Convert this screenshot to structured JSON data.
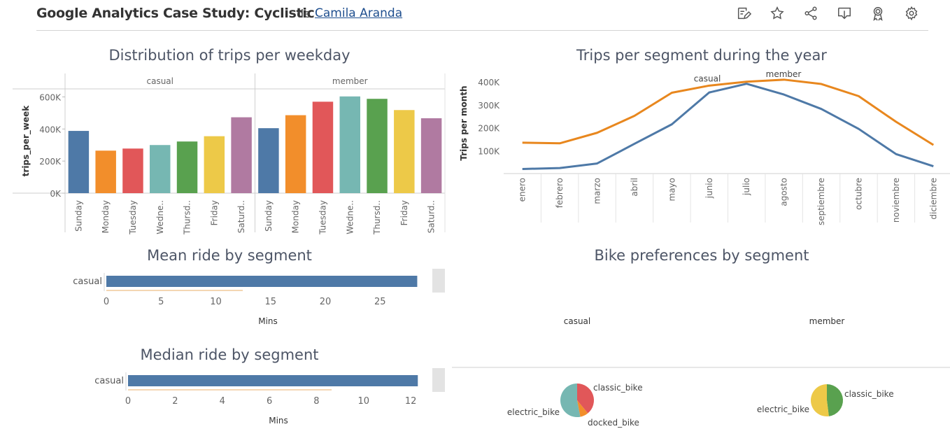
{
  "header": {
    "title": "Google Analytics Case Study: Cyclistic",
    "by": "de",
    "author": "Camila Aranda"
  },
  "toolbar": {
    "icons": [
      "edit-icon",
      "star-icon",
      "share-icon",
      "download-icon",
      "badge-icon",
      "settings-icon"
    ]
  },
  "chart_data": [
    {
      "id": "weekday",
      "type": "bar",
      "title": "Distribution of trips per weekday",
      "ylabel": "trips_per_week",
      "ylim": [
        0,
        650000
      ],
      "yticks": [
        0,
        200000,
        400000,
        600000
      ],
      "ytick_labels": [
        "0K",
        "200K",
        "400K",
        "600K"
      ],
      "categories": [
        "Sunday",
        "Monday",
        "Tuesday",
        "Wedne..",
        "Thursd..",
        "Friday",
        "Saturd.."
      ],
      "colors": [
        "#4e79a7",
        "#f28e2b",
        "#e15759",
        "#76b7b2",
        "#59a14f",
        "#edc948",
        "#b07aa1"
      ],
      "series": [
        {
          "name": "casual",
          "values": [
            388000,
            265000,
            278000,
            300000,
            322000,
            355000,
            473000
          ]
        },
        {
          "name": "member",
          "values": [
            405000,
            486000,
            570000,
            603000,
            588000,
            518000,
            467000
          ]
        }
      ]
    },
    {
      "id": "monthly",
      "type": "line",
      "title": "Trips per segment during the year",
      "ylabel": "Trips per month",
      "ylim": [
        0,
        440000
      ],
      "yticks": [
        100000,
        200000,
        300000,
        400000
      ],
      "ytick_labels": [
        "100K",
        "200K",
        "300K",
        "400K"
      ],
      "categories": [
        "enero",
        "febrero",
        "marzo",
        "abril",
        "mayo",
        "junio",
        "julio",
        "agosto",
        "septiembre",
        "octubre",
        "noviembre",
        "diciembre"
      ],
      "series": [
        {
          "name": "casual",
          "color": "#4e79a7",
          "values": [
            20000,
            24000,
            44000,
            130000,
            215000,
            354000,
            392000,
            345000,
            282000,
            195000,
            85000,
            32000
          ]
        },
        {
          "name": "member",
          "color": "#e8871e",
          "values": [
            135000,
            132000,
            178000,
            252000,
            353000,
            384000,
            401000,
            410000,
            391000,
            338000,
            226000,
            125000
          ]
        }
      ]
    },
    {
      "id": "mean",
      "type": "bar",
      "orientation": "horizontal",
      "title": "Mean ride by segment",
      "xlabel": "Mins",
      "xlim": [
        0,
        28.5
      ],
      "xticks": [
        0,
        5,
        10,
        15,
        20,
        25
      ],
      "categories": [
        "casual"
      ],
      "values": [
        28.4
      ],
      "color": "#4e79a7"
    },
    {
      "id": "median",
      "type": "bar",
      "orientation": "horizontal",
      "title": "Median ride by segment",
      "xlabel": "Mins",
      "xlim": [
        0,
        12.5
      ],
      "xticks": [
        0,
        2,
        4,
        6,
        8,
        10,
        12
      ],
      "categories": [
        "casual"
      ],
      "values": [
        12.3
      ],
      "color": "#4e79a7"
    },
    {
      "id": "bikes",
      "type": "pie",
      "title": "Bike preferences by segment",
      "pies": [
        {
          "name": "casual",
          "slices": [
            {
              "label": "classic_bike",
              "value": 0.39,
              "color": "#e15759"
            },
            {
              "label": "docked_bike",
              "value": 0.08,
              "color": "#f28e2b"
            },
            {
              "label": "electric_bike",
              "value": 0.53,
              "color": "#76b7b2"
            }
          ]
        },
        {
          "name": "member",
          "slices": [
            {
              "label": "classic_bike",
              "value": 0.48,
              "color": "#59a14f"
            },
            {
              "label": "electric_bike",
              "value": 0.52,
              "color": "#edc948"
            }
          ]
        }
      ]
    }
  ]
}
